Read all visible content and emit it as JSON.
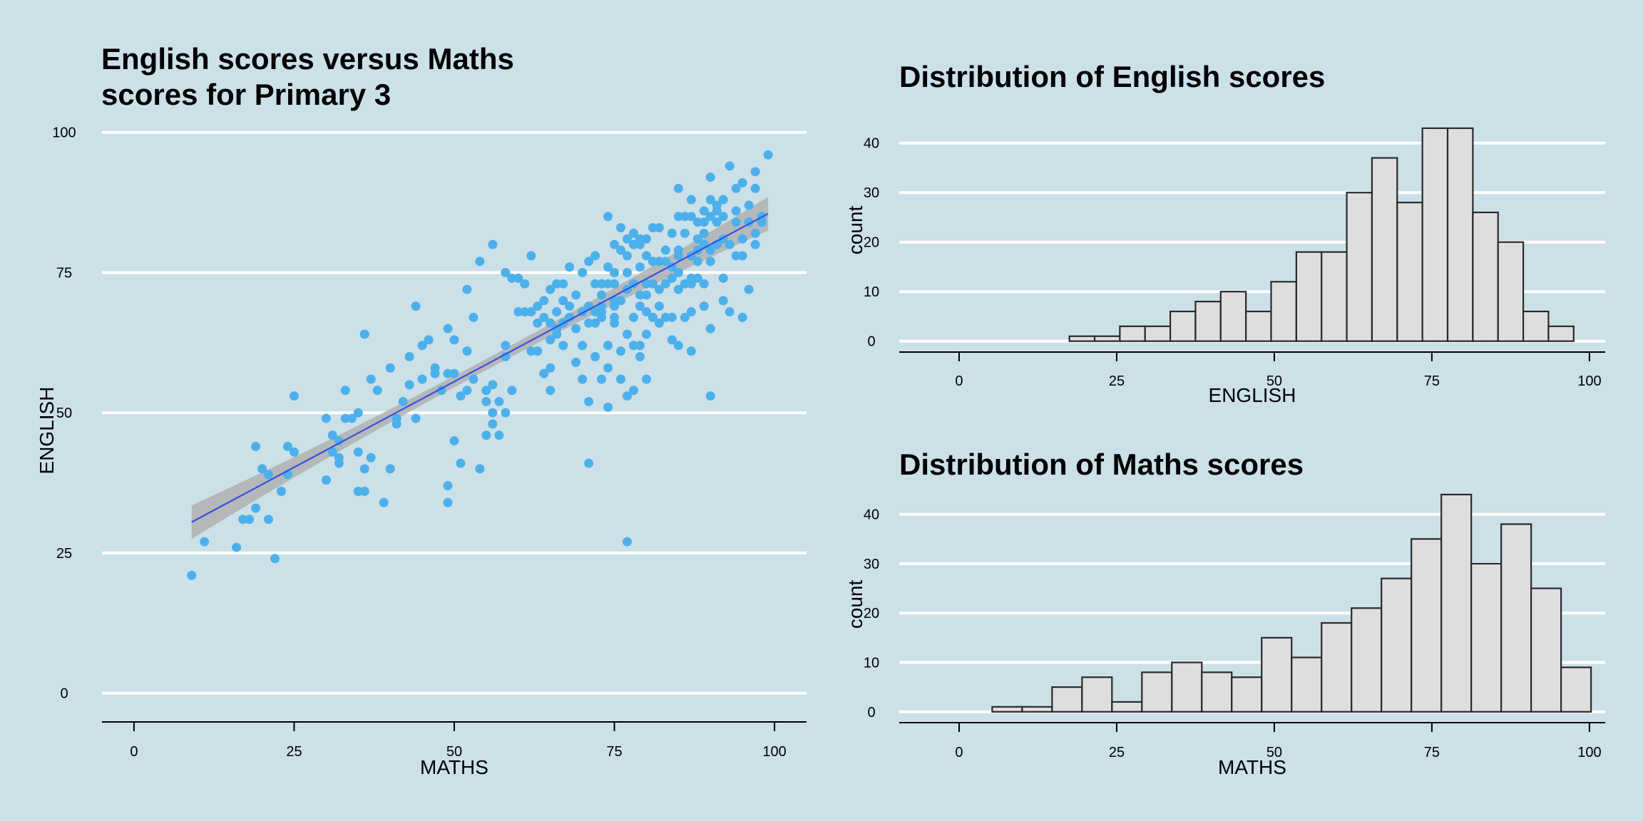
{
  "page": {
    "background": "#cce0e8"
  },
  "chart_data": [
    {
      "type": "scatter",
      "title_lines": [
        "English scores versus Maths",
        "scores for Primary 3"
      ],
      "xlabel": "MATHS",
      "ylabel": "ENGLISH",
      "xlim": [
        -5,
        105
      ],
      "ylim": [
        -5,
        102
      ],
      "xticks": [
        0,
        25,
        50,
        75,
        100
      ],
      "yticks": [
        0,
        25,
        50,
        75,
        100
      ],
      "grid": "horizontal",
      "point_color": "#4cb0eb",
      "fit": {
        "type": "linear",
        "x": [
          9,
          99
        ],
        "y": [
          30.5,
          85.5
        ],
        "ci_half_width_ends": 3,
        "ci_half_width_mid": 1,
        "line_color": "#3a4fe0",
        "band_color": "#b0b0b0"
      },
      "points": [
        [
          9,
          21
        ],
        [
          11,
          27
        ],
        [
          16,
          26
        ],
        [
          17,
          31
        ],
        [
          18,
          31
        ],
        [
          19,
          33
        ],
        [
          19,
          44
        ],
        [
          20,
          40
        ],
        [
          21,
          39
        ],
        [
          21,
          31
        ],
        [
          22,
          24
        ],
        [
          23,
          36
        ],
        [
          24,
          39
        ],
        [
          24,
          44
        ],
        [
          25,
          43
        ],
        [
          25,
          53
        ],
        [
          30,
          49
        ],
        [
          30,
          38
        ],
        [
          31,
          46
        ],
        [
          31,
          43
        ],
        [
          32,
          42
        ],
        [
          32,
          41
        ],
        [
          32,
          45
        ],
        [
          33,
          54
        ],
        [
          33,
          49
        ],
        [
          34,
          49
        ],
        [
          35,
          50
        ],
        [
          35,
          43
        ],
        [
          35,
          36
        ],
        [
          36,
          36
        ],
        [
          36,
          40
        ],
        [
          36,
          64
        ],
        [
          37,
          42
        ],
        [
          37,
          56
        ],
        [
          38,
          54
        ],
        [
          39,
          34
        ],
        [
          40,
          40
        ],
        [
          40,
          58
        ],
        [
          41,
          49
        ],
        [
          41,
          48
        ],
        [
          42,
          52
        ],
        [
          43,
          55
        ],
        [
          43,
          60
        ],
        [
          44,
          49
        ],
        [
          44,
          69
        ],
        [
          45,
          56
        ],
        [
          45,
          62
        ],
        [
          46,
          63
        ],
        [
          47,
          57
        ],
        [
          47,
          58
        ],
        [
          48,
          54
        ],
        [
          49,
          57
        ],
        [
          49,
          37
        ],
        [
          49,
          34
        ],
        [
          49,
          65
        ],
        [
          50,
          57
        ],
        [
          50,
          45
        ],
        [
          50,
          63
        ],
        [
          51,
          41
        ],
        [
          51,
          53
        ],
        [
          52,
          54
        ],
        [
          52,
          61
        ],
        [
          52,
          72
        ],
        [
          53,
          56
        ],
        [
          53,
          67
        ],
        [
          54,
          40
        ],
        [
          54,
          77
        ],
        [
          55,
          46
        ],
        [
          55,
          54
        ],
        [
          55,
          52
        ],
        [
          56,
          48
        ],
        [
          56,
          50
        ],
        [
          56,
          55
        ],
        [
          56,
          80
        ],
        [
          57,
          52
        ],
        [
          57,
          46
        ],
        [
          58,
          62
        ],
        [
          58,
          60
        ],
        [
          58,
          75
        ],
        [
          58,
          50
        ],
        [
          59,
          54
        ],
        [
          59,
          74
        ],
        [
          60,
          74
        ],
        [
          60,
          68
        ],
        [
          61,
          73
        ],
        [
          61,
          68
        ],
        [
          62,
          78
        ],
        [
          62,
          61
        ],
        [
          62,
          68
        ],
        [
          63,
          61
        ],
        [
          63,
          66
        ],
        [
          63,
          69
        ],
        [
          64,
          70
        ],
        [
          64,
          57
        ],
        [
          64,
          67
        ],
        [
          65,
          63
        ],
        [
          65,
          66
        ],
        [
          65,
          58
        ],
        [
          65,
          72
        ],
        [
          65,
          54
        ],
        [
          66,
          64
        ],
        [
          66,
          65
        ],
        [
          66,
          68
        ],
        [
          66,
          73
        ],
        [
          67,
          70
        ],
        [
          67,
          62
        ],
        [
          67,
          73
        ],
        [
          67,
          66
        ],
        [
          68,
          76
        ],
        [
          68,
          69
        ],
        [
          68,
          67
        ],
        [
          69,
          59
        ],
        [
          69,
          65
        ],
        [
          69,
          71
        ],
        [
          70,
          75
        ],
        [
          70,
          62
        ],
        [
          70,
          68
        ],
        [
          70,
          56
        ],
        [
          71,
          66
        ],
        [
          71,
          69
        ],
        [
          71,
          41
        ],
        [
          71,
          77
        ],
        [
          71,
          52
        ],
        [
          72,
          73
        ],
        [
          72,
          66
        ],
        [
          72,
          68
        ],
        [
          72,
          78
        ],
        [
          72,
          60
        ],
        [
          73,
          71
        ],
        [
          73,
          68
        ],
        [
          73,
          69
        ],
        [
          73,
          73
        ],
        [
          73,
          56
        ],
        [
          73,
          67
        ],
        [
          74,
          62
        ],
        [
          74,
          73
        ],
        [
          74,
          58
        ],
        [
          74,
          76
        ],
        [
          74,
          51
        ],
        [
          74,
          85
        ],
        [
          75,
          75
        ],
        [
          75,
          70
        ],
        [
          75,
          69
        ],
        [
          75,
          73
        ],
        [
          75,
          66
        ],
        [
          75,
          67
        ],
        [
          75,
          80
        ],
        [
          76,
          61
        ],
        [
          76,
          70
        ],
        [
          76,
          79
        ],
        [
          76,
          83
        ],
        [
          76,
          56
        ],
        [
          77,
          75
        ],
        [
          77,
          72
        ],
        [
          77,
          78
        ],
        [
          77,
          81
        ],
        [
          77,
          27
        ],
        [
          77,
          53
        ],
        [
          77,
          64
        ],
        [
          78,
          73
        ],
        [
          78,
          82
        ],
        [
          78,
          54
        ],
        [
          78,
          67
        ],
        [
          78,
          62
        ],
        [
          78,
          80
        ],
        [
          79,
          62
        ],
        [
          79,
          69
        ],
        [
          79,
          71
        ],
        [
          79,
          80
        ],
        [
          79,
          60
        ],
        [
          79,
          76
        ],
        [
          79,
          81
        ],
        [
          80,
          71
        ],
        [
          80,
          73
        ],
        [
          80,
          64
        ],
        [
          80,
          78
        ],
        [
          80,
          68
        ],
        [
          80,
          56
        ],
        [
          80,
          81
        ],
        [
          81,
          67
        ],
        [
          81,
          77
        ],
        [
          81,
          83
        ],
        [
          81,
          73
        ],
        [
          82,
          72
        ],
        [
          82,
          77
        ],
        [
          82,
          69
        ],
        [
          82,
          66
        ],
        [
          82,
          83
        ],
        [
          83,
          67
        ],
        [
          83,
          77
        ],
        [
          83,
          79
        ],
        [
          83,
          73
        ],
        [
          84,
          74
        ],
        [
          84,
          63
        ],
        [
          84,
          67
        ],
        [
          84,
          76
        ],
        [
          84,
          82
        ],
        [
          85,
          72
        ],
        [
          85,
          75
        ],
        [
          85,
          62
        ],
        [
          85,
          79
        ],
        [
          85,
          78
        ],
        [
          85,
          85
        ],
        [
          85,
          90
        ],
        [
          86,
          82
        ],
        [
          86,
          73
        ],
        [
          86,
          67
        ],
        [
          86,
          85
        ],
        [
          87,
          73
        ],
        [
          87,
          78
        ],
        [
          87,
          68
        ],
        [
          87,
          74
        ],
        [
          87,
          61
        ],
        [
          87,
          88
        ],
        [
          87,
          85
        ],
        [
          88,
          81
        ],
        [
          88,
          79
        ],
        [
          88,
          84
        ],
        [
          88,
          74
        ],
        [
          88,
          77
        ],
        [
          89,
          80
        ],
        [
          89,
          73
        ],
        [
          89,
          82
        ],
        [
          89,
          84
        ],
        [
          89,
          86
        ],
        [
          89,
          69
        ],
        [
          90,
          77
        ],
        [
          90,
          79
        ],
        [
          90,
          85
        ],
        [
          90,
          92
        ],
        [
          90,
          53
        ],
        [
          90,
          88
        ],
        [
          90,
          65
        ],
        [
          91,
          80
        ],
        [
          91,
          84
        ],
        [
          91,
          87
        ],
        [
          91,
          86
        ],
        [
          92,
          88
        ],
        [
          92,
          74
        ],
        [
          92,
          70
        ],
        [
          92,
          81
        ],
        [
          92,
          85
        ],
        [
          93,
          80
        ],
        [
          93,
          68
        ],
        [
          93,
          94
        ],
        [
          94,
          78
        ],
        [
          94,
          84
        ],
        [
          94,
          90
        ],
        [
          94,
          86
        ],
        [
          95,
          81
        ],
        [
          95,
          67
        ],
        [
          95,
          91
        ],
        [
          95,
          78
        ],
        [
          96,
          72
        ],
        [
          96,
          84
        ],
        [
          96,
          87
        ],
        [
          97,
          82
        ],
        [
          97,
          90
        ],
        [
          97,
          80
        ],
        [
          97,
          93
        ],
        [
          98,
          84
        ],
        [
          98,
          85
        ],
        [
          99,
          96
        ]
      ]
    },
    {
      "type": "bar",
      "title": "Distribution of English scores",
      "xlabel": "ENGLISH",
      "ylabel": "count",
      "xlim": [
        -9.5,
        102.5
      ],
      "ylim": [
        -2.2,
        45
      ],
      "xticks": [
        0,
        25,
        50,
        75,
        100
      ],
      "yticks": [
        0,
        10,
        20,
        30,
        40
      ],
      "grid": "horizontal",
      "bar_fill": "#dedede",
      "bar_stroke": "#2a2a2a",
      "bins_left_edge": 17.5,
      "bin_width": 4,
      "values": [
        1,
        1,
        3,
        3,
        6,
        8,
        10,
        6,
        12,
        18,
        18,
        30,
        37,
        28,
        43,
        43,
        26,
        20,
        6,
        3
      ]
    },
    {
      "type": "bar",
      "title": "Distribution of Maths scores",
      "xlabel": "MATHS",
      "ylabel": "count",
      "xlim": [
        -9.5,
        102.5
      ],
      "ylim": [
        -2.2,
        45
      ],
      "xticks": [
        0,
        25,
        50,
        75,
        100
      ],
      "yticks": [
        0,
        10,
        20,
        30,
        40
      ],
      "grid": "horizontal",
      "bar_fill": "#dedede",
      "bar_stroke": "#2a2a2a",
      "bins_left_edge": 5.25,
      "bin_width": 4.75,
      "values": [
        1,
        1,
        5,
        7,
        2,
        8,
        10,
        8,
        7,
        15,
        11,
        18,
        21,
        27,
        35,
        44,
        30,
        38,
        25,
        9
      ]
    }
  ]
}
